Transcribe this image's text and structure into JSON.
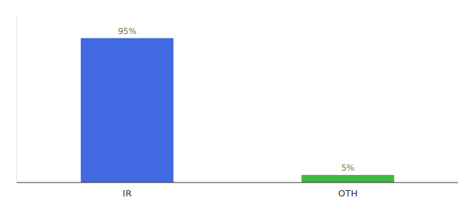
{
  "chart_data": {
    "type": "bar",
    "categories": [
      "IR",
      "OTH"
    ],
    "values": [
      95,
      5
    ],
    "value_labels": [
      "95%",
      "5%"
    ],
    "colors": [
      "#4169e1",
      "#3dba3d"
    ],
    "ylim": [
      0,
      110
    ],
    "data_labels": true,
    "tick_labels": "x",
    "grid": false
  }
}
